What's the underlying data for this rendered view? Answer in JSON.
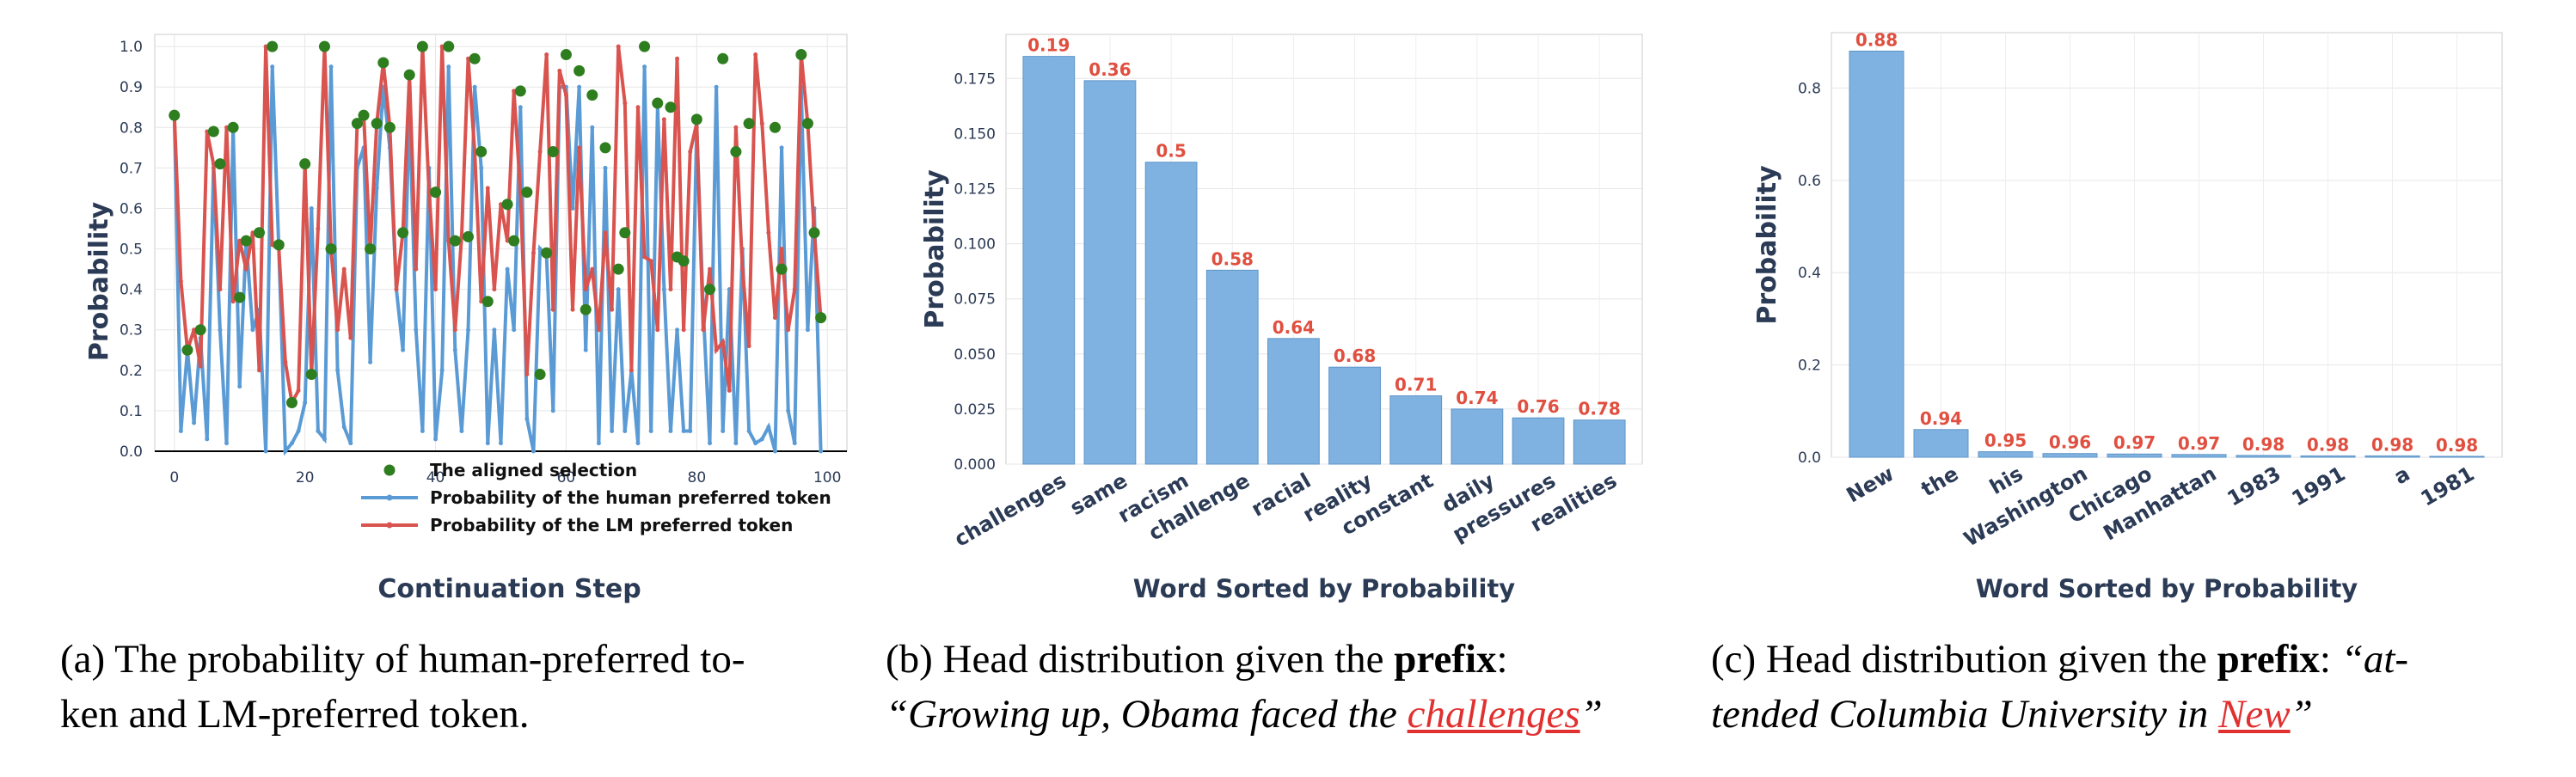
{
  "chart_data": [
    {
      "type": "line",
      "xlabel": "Continuation Step",
      "ylabel": "Probability",
      "xlim": [
        -3,
        103
      ],
      "ylim": [
        0,
        1.03
      ],
      "xticks": [
        0,
        20,
        40,
        60,
        80,
        100
      ],
      "yticks": [
        0.0,
        0.1,
        0.2,
        0.3,
        0.4,
        0.5,
        0.6,
        0.7,
        0.8,
        0.9,
        1.0
      ],
      "grid": true,
      "legend_position": "lower-right",
      "colors": {
        "lm": "#d9534f",
        "human": "#5b9bd5",
        "aligned": "#2e7d1f"
      },
      "series": [
        {
          "name": "The aligned selection",
          "marker": "point",
          "x": [
            0,
            2,
            4,
            6,
            7,
            9,
            10,
            11,
            13,
            15,
            16,
            18,
            20,
            21,
            23,
            24,
            28,
            29,
            30,
            31,
            32,
            33,
            35,
            36,
            38,
            40,
            42,
            43,
            45,
            46,
            47,
            48,
            51,
            52,
            53,
            54,
            56,
            57,
            58,
            60,
            62,
            63,
            64,
            66,
            68,
            69,
            72,
            74,
            76,
            77,
            78,
            80,
            82,
            84,
            86,
            88,
            92,
            93,
            96,
            97,
            98,
            99
          ],
          "y": [
            0.83,
            0.25,
            0.3,
            0.79,
            0.71,
            0.8,
            0.38,
            0.52,
            0.54,
            1.0,
            0.51,
            0.12,
            0.71,
            0.19,
            1.0,
            0.5,
            0.81,
            0.83,
            0.5,
            0.81,
            0.96,
            0.8,
            0.54,
            0.93,
            1.0,
            0.64,
            1.0,
            0.52,
            0.53,
            0.97,
            0.74,
            0.37,
            0.61,
            0.52,
            0.89,
            0.64,
            0.19,
            0.49,
            0.74,
            0.98,
            0.94,
            0.35,
            0.88,
            0.75,
            0.45,
            0.54,
            1.0,
            0.86,
            0.85,
            0.48,
            0.47,
            0.82,
            0.4,
            0.97,
            0.74,
            0.81,
            0.8,
            0.45,
            0.98,
            0.81,
            0.54,
            0.33
          ]
        },
        {
          "name": "Probability of the human preferred token",
          "marker": "dot",
          "x": [
            0,
            1,
            2,
            3,
            4,
            5,
            6,
            7,
            8,
            9,
            10,
            11,
            12,
            13,
            14,
            15,
            16,
            17,
            18,
            19,
            20,
            21,
            22,
            23,
            24,
            25,
            26,
            27,
            28,
            29,
            30,
            31,
            32,
            33,
            34,
            35,
            36,
            37,
            38,
            39,
            40,
            41,
            42,
            43,
            44,
            45,
            46,
            47,
            48,
            49,
            50,
            51,
            52,
            53,
            54,
            55,
            56,
            57,
            58,
            59,
            60,
            61,
            62,
            63,
            64,
            65,
            66,
            67,
            68,
            69,
            70,
            71,
            72,
            73,
            74,
            75,
            76,
            77,
            78,
            79,
            80,
            81,
            82,
            83,
            84,
            85,
            86,
            87,
            88,
            89,
            90,
            91,
            92,
            93,
            94,
            95,
            96,
            97,
            98,
            99
          ],
          "y": [
            0.83,
            0.05,
            0.25,
            0.07,
            0.28,
            0.03,
            0.7,
            0.3,
            0.02,
            0.8,
            0.16,
            0.52,
            0.3,
            0.35,
            0.0,
            0.95,
            0.5,
            0.0,
            0.02,
            0.05,
            0.12,
            0.6,
            0.05,
            0.03,
            0.95,
            0.2,
            0.06,
            0.02,
            0.7,
            0.75,
            0.22,
            0.65,
            0.9,
            0.75,
            0.4,
            0.25,
            0.85,
            0.3,
            0.05,
            0.7,
            0.03,
            0.2,
            0.95,
            0.25,
            0.05,
            0.3,
            0.9,
            0.7,
            0.02,
            0.3,
            0.02,
            0.45,
            0.3,
            0.85,
            0.08,
            0.0,
            0.5,
            0.48,
            0.1,
            0.9,
            0.9,
            0.6,
            0.9,
            0.25,
            0.8,
            0.02,
            0.7,
            0.05,
            0.4,
            0.05,
            0.2,
            0.02,
            0.95,
            0.05,
            0.85,
            0.4,
            0.05,
            0.3,
            0.05,
            0.05,
            0.8,
            0.35,
            0.02,
            0.9,
            0.05,
            0.4,
            0.02,
            0.5,
            0.05,
            0.02,
            0.03,
            0.06,
            0.0,
            0.75,
            0.1,
            0.02,
            0.9,
            0.3,
            0.6,
            0.0
          ]
        },
        {
          "name": "Probability of the LM preferred token",
          "marker": "dot",
          "x": [
            0,
            1,
            2,
            3,
            4,
            5,
            6,
            7,
            8,
            9,
            10,
            11,
            12,
            13,
            14,
            15,
            16,
            17,
            18,
            19,
            20,
            21,
            22,
            23,
            24,
            25,
            26,
            27,
            28,
            29,
            30,
            31,
            32,
            33,
            34,
            35,
            36,
            37,
            38,
            39,
            40,
            41,
            42,
            43,
            44,
            45,
            46,
            47,
            48,
            49,
            50,
            51,
            52,
            53,
            54,
            55,
            56,
            57,
            58,
            59,
            60,
            61,
            62,
            63,
            64,
            65,
            66,
            67,
            68,
            69,
            70,
            71,
            72,
            73,
            74,
            75,
            76,
            77,
            78,
            79,
            80,
            81,
            82,
            83,
            84,
            85,
            86,
            87,
            88,
            89,
            90,
            91,
            92,
            93,
            94,
            95,
            96,
            97,
            98,
            99
          ],
          "y": [
            0.83,
            0.42,
            0.25,
            0.3,
            0.21,
            0.79,
            0.71,
            0.4,
            0.8,
            0.37,
            0.52,
            0.45,
            0.54,
            0.2,
            1.0,
            0.51,
            0.5,
            0.22,
            0.12,
            0.15,
            0.71,
            0.19,
            0.55,
            1.0,
            0.5,
            0.3,
            0.45,
            0.28,
            0.81,
            0.83,
            0.5,
            0.81,
            0.96,
            0.8,
            0.4,
            0.54,
            0.93,
            0.45,
            1.0,
            0.64,
            0.4,
            1.0,
            0.52,
            0.3,
            0.53,
            0.97,
            0.74,
            0.37,
            0.65,
            0.4,
            0.61,
            0.52,
            0.89,
            0.64,
            0.19,
            0.49,
            0.74,
            0.98,
            0.35,
            0.94,
            0.88,
            0.35,
            0.75,
            0.4,
            0.45,
            0.3,
            0.54,
            0.35,
            1.0,
            0.86,
            0.2,
            0.85,
            0.48,
            0.47,
            0.3,
            0.82,
            0.4,
            0.97,
            0.3,
            0.74,
            0.81,
            0.3,
            0.45,
            0.25,
            0.27,
            0.15,
            0.8,
            0.45,
            0.26,
            0.98,
            0.81,
            0.54,
            0.33,
            0.5,
            0.3,
            0.4,
            0.98,
            0.81,
            0.54,
            0.33
          ]
        }
      ]
    },
    {
      "type": "bar",
      "xlabel": "Word Sorted by Probability",
      "ylabel": "Probability",
      "ylim": [
        0,
        0.195
      ],
      "yticks": [
        "0.000",
        "0.025",
        "0.050",
        "0.075",
        "0.100",
        "0.125",
        "0.150",
        "0.175"
      ],
      "grid": true,
      "bar_color": "#7fb2e0",
      "label_color": "#e04f3f",
      "categories": [
        "challenges",
        "same",
        "racism",
        "challenge",
        "racial",
        "reality",
        "constant",
        "daily",
        "pressures",
        "realities"
      ],
      "values": [
        0.185,
        0.174,
        0.137,
        0.088,
        0.057,
        0.044,
        0.031,
        0.025,
        0.021,
        0.02
      ],
      "bar_labels": [
        "0.19",
        "0.36",
        "0.5",
        "0.58",
        "0.64",
        "0.68",
        "0.71",
        "0.74",
        "0.76",
        "0.78"
      ]
    },
    {
      "type": "bar",
      "xlabel": "Word Sorted by Probability",
      "ylabel": "Probability",
      "ylim": [
        0,
        0.92
      ],
      "yticks": [
        "0.0",
        "0.2",
        "0.4",
        "0.6",
        "0.8"
      ],
      "grid": true,
      "bar_color": "#7fb2e0",
      "label_color": "#e04f3f",
      "categories": [
        "New",
        "the",
        "his",
        "Washington",
        "Chicago",
        "Manhattan",
        "1983",
        "1991",
        "a",
        "1981"
      ],
      "values": [
        0.88,
        0.06,
        0.012,
        0.008,
        0.007,
        0.006,
        0.004,
        0.003,
        0.003,
        0.002
      ],
      "bar_labels": [
        "0.88",
        "0.94",
        "0.95",
        "0.96",
        "0.97",
        "0.97",
        "0.98",
        "0.98",
        "0.98",
        "0.98"
      ]
    }
  ],
  "captions": {
    "a": {
      "line1": "(a) The probability of human-preferred to-",
      "line2": "ken and LM-preferred token."
    },
    "b": {
      "tag": "(b) Head distribution given the ",
      "bold": "prefix",
      "colon": ":",
      "quote_before": "“Growing up, Obama faced the ",
      "highlight": "challenges",
      "quote_after": "”"
    },
    "c": {
      "tag": "(c) Head distribution given the ",
      "bold": "prefix",
      "colon": ": ",
      "quote_start": "“at-",
      "quote_before": "tended Columbia University in ",
      "highlight": "New",
      "quote_after": "”"
    }
  }
}
